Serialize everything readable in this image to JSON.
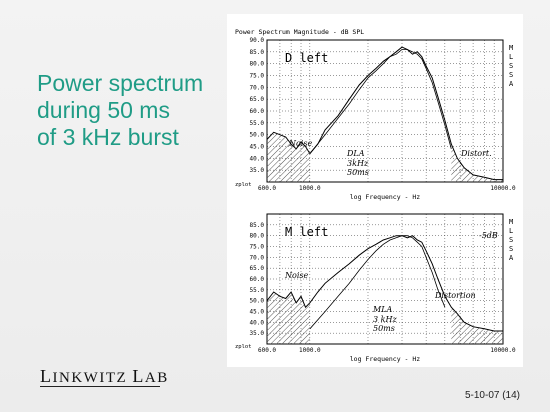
{
  "slide": {
    "title_lines": [
      "Power spectrum",
      "during 50 ms",
      "of 3 kHz burst"
    ],
    "footer_brand": "Linkwitz Lab",
    "footer_brand_first_cap": "L",
    "footer_brand_rest1": "INKWITZ ",
    "footer_brand_second_cap": "L",
    "footer_brand_rest2": "AB",
    "slide_number": "5-10-07 (14)",
    "colors": {
      "title": "#1f9c86",
      "background": "#efefef"
    }
  },
  "chart_data": [
    {
      "type": "line",
      "title": "Power Spectrum Magnitude - dB SPL",
      "side_label": "MLSSA",
      "panel_label": "D left",
      "xlabel": "log Frequency - Hz",
      "x_scale": "log",
      "xlim": [
        600,
        10000
      ],
      "x_tick_labels": [
        "600.0",
        "1000.0",
        "10000.0"
      ],
      "ylim": [
        30,
        90
      ],
      "y_tick_labels": [
        "90.0",
        "85.0",
        "80.0",
        "75.0",
        "70.0",
        "65.0",
        "60.0",
        "55.0",
        "50.0",
        "45.0",
        "40.0",
        "35.0"
      ],
      "y_corner_label": "zplot",
      "annotations": [
        "Noise",
        "DLA",
        "3kHz",
        "50ms",
        "Distort."
      ],
      "series": [
        {
          "x": [
            600,
            650,
            700,
            750,
            800,
            850,
            900,
            950,
            1000,
            1100,
            1200,
            1400,
            1600,
            1800,
            2000,
            2200,
            2400,
            2600,
            2800,
            3000,
            3200,
            3400,
            3600,
            3800,
            4000,
            4300,
            4600,
            5000,
            5400,
            5800,
            6300,
            7000,
            8000,
            9000,
            10000
          ],
          "y": [
            48,
            51,
            50,
            49,
            46,
            44,
            47,
            45,
            42,
            46,
            52,
            58,
            65,
            71,
            75,
            78,
            81,
            83,
            85,
            87,
            86,
            84,
            85,
            83,
            79,
            74,
            66,
            56,
            46,
            40,
            36,
            33,
            32,
            31,
            31
          ]
        },
        {
          "x": [
            1000,
            1200,
            1400,
            1600,
            1800,
            2000,
            2200,
            2400,
            2600,
            2800,
            3000,
            3200,
            3400,
            3600,
            3800,
            4000,
            4300,
            4600,
            5000,
            5400
          ],
          "y": [
            42,
            50,
            57,
            63,
            69,
            74,
            77,
            80,
            83,
            84,
            86,
            86,
            85,
            84,
            82,
            78,
            72,
            64,
            54,
            44
          ]
        }
      ]
    },
    {
      "type": "line",
      "title": "",
      "side_label": "MLSSA",
      "panel_label": "M left",
      "xlabel": "log Frequency - Hz",
      "x_scale": "log",
      "xlim": [
        600,
        10000
      ],
      "x_tick_labels": [
        "600.0",
        "1000.0",
        "10000.0"
      ],
      "ylim": [
        30,
        90
      ],
      "y_tick_labels": [
        "85.0",
        "80.0",
        "75.0",
        "70.0",
        "65.0",
        "60.0",
        "55.0",
        "50.0",
        "45.0",
        "40.0",
        "35.0"
      ],
      "y_corner_label": "zplot",
      "annotations": [
        "Noise",
        "MLA",
        "3 kHz",
        "50ms",
        "Distortion",
        "-5dB"
      ],
      "series": [
        {
          "x": [
            600,
            650,
            700,
            750,
            800,
            850,
            900,
            950,
            1000,
            1100,
            1200,
            1400,
            1600,
            1800,
            2000,
            2200,
            2400,
            2600,
            2800,
            3000,
            3200,
            3400,
            3600,
            3800,
            4000,
            4300,
            4600,
            5000,
            5400,
            5800,
            6300,
            7000,
            8000,
            9000,
            10000
          ],
          "y": [
            50,
            54,
            52,
            51,
            54,
            49,
            52,
            47,
            49,
            54,
            58,
            63,
            67,
            71,
            74,
            76,
            78,
            79,
            80,
            80,
            79,
            80,
            78,
            77,
            73,
            67,
            60,
            52,
            47,
            44,
            40,
            38,
            37,
            36,
            36
          ]
        },
        {
          "x": [
            1000,
            1200,
            1400,
            1600,
            1800,
            2000,
            2200,
            2400,
            2600,
            2800,
            3000,
            3200,
            3400,
            3600,
            3800,
            4000,
            4300,
            4600,
            5000
          ],
          "y": [
            37,
            45,
            52,
            58,
            64,
            69,
            73,
            76,
            78,
            79,
            80,
            80,
            79,
            77,
            75,
            70,
            63,
            55,
            47
          ]
        }
      ]
    }
  ]
}
